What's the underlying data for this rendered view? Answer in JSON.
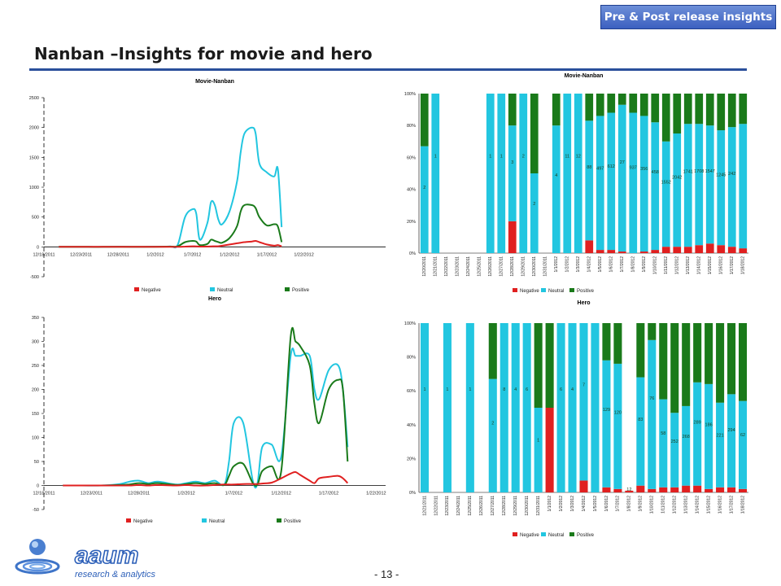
{
  "header": {
    "badge": "Pre & Post release insights",
    "title": "Nanban –Insights for movie and hero"
  },
  "footer": {
    "page_number": "- 13 -",
    "logo_word": "aaum",
    "logo_tag": "research & analytics"
  },
  "colors": {
    "negative": "#e02020",
    "neutral": "#22c6e0",
    "positive": "#1a7a1a"
  },
  "chart_data": [
    {
      "id": "movie-line",
      "type": "line",
      "title": "Movie-Nanban",
      "ylim": [
        -500,
        2500
      ],
      "yticks": [
        -500,
        0,
        500,
        1000,
        1500,
        2000,
        2500
      ],
      "xlim": [
        0,
        46
      ],
      "xticks": [
        {
          "pos": 0,
          "label": "12/18/2011"
        },
        {
          "pos": 5,
          "label": "12/23/2011"
        },
        {
          "pos": 10,
          "label": "12/28/2011"
        },
        {
          "pos": 15,
          "label": "1/2/2012"
        },
        {
          "pos": 20,
          "label": "1/7/2012"
        },
        {
          "pos": 25,
          "label": "1/12/2012"
        },
        {
          "pos": 30,
          "label": "1/17/2012"
        },
        {
          "pos": 35,
          "label": "1/22/2012"
        }
      ],
      "legend": [
        "Negative",
        "Neutral",
        "Positive"
      ],
      "x": [
        2,
        4,
        6,
        8,
        10,
        11,
        13,
        15,
        17,
        18,
        19,
        20,
        20.5,
        21,
        22,
        22.5,
        23,
        23.5,
        24,
        25,
        26,
        26.5,
        27,
        28,
        28.5,
        29,
        30,
        31,
        31.5,
        32
      ],
      "series": [
        {
          "name": "Negative",
          "values": [
            0,
            0,
            0,
            0,
            0,
            0,
            0,
            0,
            0,
            0,
            5,
            10,
            8,
            5,
            6,
            8,
            10,
            12,
            20,
            40,
            60,
            70,
            80,
            90,
            100,
            80,
            40,
            20,
            30,
            10
          ]
        },
        {
          "name": "Neutral",
          "values": [
            0,
            0,
            0,
            0,
            5,
            3,
            2,
            5,
            8,
            30,
            500,
            630,
            560,
            120,
            400,
            750,
            700,
            450,
            380,
            600,
            1100,
            1600,
            1900,
            2000,
            1900,
            1400,
            1250,
            1180,
            1300,
            330
          ]
        },
        {
          "name": "Positive",
          "values": [
            0,
            0,
            0,
            0,
            2,
            1,
            1,
            2,
            4,
            10,
            80,
            100,
            90,
            30,
            50,
            120,
            100,
            80,
            70,
            150,
            350,
            600,
            700,
            700,
            650,
            500,
            360,
            380,
            340,
            80
          ]
        }
      ]
    },
    {
      "id": "movie-bar",
      "type": "bar",
      "title": "Movie-Nanban",
      "ylim": [
        0,
        100
      ],
      "yticks": [
        0,
        20,
        40,
        60,
        80,
        100
      ],
      "legend": [
        "Negative",
        "Neutral",
        "Positive"
      ],
      "categories": [
        "12/20/2011",
        "12/21/2011",
        "12/22/2011",
        "12/23/2011",
        "12/24/2011",
        "12/25/2011",
        "12/26/2011",
        "12/27/2011",
        "12/28/2011",
        "12/29/2011",
        "12/30/2011",
        "12/31/2011",
        "1/1/2012",
        "1/2/2012",
        "1/3/2012",
        "1/4/2012",
        "1/5/2012",
        "1/6/2012",
        "1/7/2012",
        "1/8/2012",
        "1/9/2012",
        "1/10/2012",
        "1/11/2012",
        "1/12/2012",
        "1/13/2012",
        "1/14/2012",
        "1/15/2012",
        "1/16/2012",
        "1/17/2012",
        "1/18/2012"
      ],
      "series": [
        {
          "name": "Negative",
          "values": [
            0,
            0,
            0,
            0,
            0,
            0,
            0,
            0,
            20,
            0,
            0,
            0,
            0,
            0,
            0,
            8,
            2,
            2,
            1,
            0,
            1,
            2,
            4,
            4,
            4,
            5,
            6,
            5,
            4,
            3
          ]
        },
        {
          "name": "Neutral",
          "values": [
            67,
            100,
            0,
            0,
            0,
            0,
            100,
            100,
            60,
            100,
            50,
            0,
            80,
            100,
            100,
            75,
            84,
            86,
            92,
            88,
            85,
            80,
            66,
            71,
            77,
            76,
            74,
            72,
            75,
            78
          ]
        },
        {
          "name": "Positive",
          "values": [
            33,
            0,
            0,
            0,
            0,
            0,
            0,
            0,
            20,
            0,
            50,
            0,
            20,
            0,
            0,
            17,
            14,
            12,
            7,
            12,
            14,
            18,
            30,
            25,
            19,
            19,
            20,
            23,
            21,
            19
          ]
        }
      ],
      "labels": [
        {
          "i": 0,
          "text": "2"
        },
        {
          "i": 1,
          "text": "1"
        },
        {
          "i": 6,
          "text": "1"
        },
        {
          "i": 7,
          "text": "1"
        },
        {
          "i": 8,
          "text": "3"
        },
        {
          "i": 9,
          "text": "2"
        },
        {
          "i": 10,
          "text": "2"
        },
        {
          "i": 12,
          "text": "4"
        },
        {
          "i": 13,
          "text": "11"
        },
        {
          "i": 14,
          "text": "12"
        },
        {
          "i": 15,
          "text": "88"
        },
        {
          "i": 16,
          "text": "497"
        },
        {
          "i": 17,
          "text": "612"
        },
        {
          "i": 18,
          "text": "27"
        },
        {
          "i": 19,
          "text": "937"
        },
        {
          "i": 20,
          "text": "356"
        },
        {
          "i": 21,
          "text": "458"
        },
        {
          "i": 22,
          "text": "1552"
        },
        {
          "i": 23,
          "text": "2042"
        },
        {
          "i": 24,
          "text": "1741"
        },
        {
          "i": 25,
          "text": "1708"
        },
        {
          "i": 26,
          "text": "1547"
        },
        {
          "i": 27,
          "text": "1245"
        },
        {
          "i": 28,
          "text": "242"
        }
      ]
    },
    {
      "id": "hero-line",
      "type": "line",
      "title": "Hero",
      "ylim": [
        -50,
        350
      ],
      "yticks": [
        -50,
        0,
        50,
        100,
        150,
        200,
        250,
        300,
        350
      ],
      "xlim": [
        0,
        36
      ],
      "xticks": [
        {
          "pos": 0,
          "label": "12/18/2011"
        },
        {
          "pos": 5,
          "label": "12/23/2011"
        },
        {
          "pos": 10,
          "label": "12/28/2011"
        },
        {
          "pos": 15,
          "label": "1/2/2012"
        },
        {
          "pos": 20,
          "label": "1/7/2012"
        },
        {
          "pos": 25,
          "label": "1/12/2012"
        },
        {
          "pos": 30,
          "label": "1/17/2012"
        },
        {
          "pos": 35,
          "label": "1/22/2012"
        }
      ],
      "legend": [
        "Negative",
        "Neutral",
        "Positive"
      ],
      "x": [
        2,
        4,
        6,
        8,
        9,
        10,
        11,
        12,
        14,
        15,
        16,
        17,
        18,
        19,
        19.5,
        20,
        21,
        22,
        22.5,
        23,
        24,
        25,
        26,
        26.5,
        27,
        28,
        28.5,
        29,
        30,
        31,
        31.5,
        32
      ],
      "series": [
        {
          "name": "Negative",
          "values": [
            0,
            0,
            0,
            0,
            0,
            1,
            0,
            1,
            0,
            1,
            0,
            0,
            1,
            2,
            2,
            2,
            3,
            3,
            3,
            4,
            6,
            15,
            25,
            28,
            22,
            10,
            5,
            15,
            18,
            20,
            15,
            5
          ]
        },
        {
          "name": "Neutral",
          "values": [
            0,
            0,
            0,
            3,
            8,
            10,
            5,
            8,
            2,
            5,
            8,
            5,
            10,
            2,
            50,
            130,
            130,
            10,
            5,
            80,
            85,
            60,
            270,
            270,
            270,
            270,
            200,
            180,
            240,
            250,
            200,
            80
          ]
        },
        {
          "name": "Positive",
          "values": [
            0,
            0,
            0,
            1,
            2,
            5,
            3,
            5,
            1,
            3,
            5,
            3,
            5,
            1,
            20,
            40,
            45,
            5,
            2,
            30,
            40,
            30,
            310,
            300,
            290,
            250,
            170,
            130,
            200,
            220,
            200,
            50
          ]
        }
      ]
    },
    {
      "id": "hero-bar",
      "type": "bar",
      "title": "Hero",
      "ylim": [
        0,
        100
      ],
      "yticks": [
        0,
        20,
        40,
        60,
        80,
        100
      ],
      "legend": [
        "Negative",
        "Neutral",
        "Positive"
      ],
      "categories": [
        "12/21/2011",
        "12/22/2011",
        "12/23/2011",
        "12/24/2011",
        "12/25/2011",
        "12/26/2011",
        "12/27/2011",
        "12/28/2011",
        "12/29/2011",
        "12/30/2011",
        "12/31/2011",
        "1/1/2012",
        "1/2/2012",
        "1/3/2012",
        "1/4/2012",
        "1/5/2012",
        "1/6/2012",
        "1/7/2012",
        "1/8/2012",
        "1/9/2012",
        "1/10/2012",
        "1/11/2012",
        "1/12/2012",
        "1/13/2012",
        "1/14/2012",
        "1/15/2012",
        "1/16/2012",
        "1/17/2012",
        "1/18/2012"
      ],
      "series": [
        {
          "name": "Negative",
          "values": [
            0,
            0,
            0,
            0,
            0,
            0,
            0,
            0,
            0,
            0,
            0,
            50,
            0,
            0,
            7,
            0,
            3,
            2,
            1,
            4,
            2,
            3,
            3,
            4,
            4,
            2,
            3,
            3,
            2
          ]
        },
        {
          "name": "Neutral",
          "values": [
            100,
            0,
            100,
            0,
            100,
            0,
            67,
            100,
            100,
            100,
            50,
            0,
            100,
            100,
            93,
            100,
            75,
            74,
            0,
            64,
            88,
            52,
            44,
            47,
            61,
            62,
            50,
            55,
            52
          ]
        },
        {
          "name": "Positive",
          "values": [
            0,
            0,
            0,
            0,
            0,
            0,
            33,
            0,
            0,
            0,
            50,
            50,
            0,
            0,
            0,
            0,
            22,
            24,
            0,
            32,
            10,
            45,
            53,
            49,
            35,
            36,
            47,
            42,
            46
          ]
        }
      ],
      "labels": [
        {
          "i": 0,
          "text": "1"
        },
        {
          "i": 2,
          "text": "1"
        },
        {
          "i": 4,
          "text": "1"
        },
        {
          "i": 6,
          "text": "2"
        },
        {
          "i": 7,
          "text": "8"
        },
        {
          "i": 8,
          "text": "4"
        },
        {
          "i": 9,
          "text": "6"
        },
        {
          "i": 10,
          "text": "1"
        },
        {
          "i": 12,
          "text": "6"
        },
        {
          "i": 13,
          "text": "4"
        },
        {
          "i": 14,
          "text": "7"
        },
        {
          "i": 16,
          "text": "129"
        },
        {
          "i": 17,
          "text": "120"
        },
        {
          "i": 18,
          "text": "12"
        },
        {
          "i": 19,
          "text": "83"
        },
        {
          "i": 20,
          "text": "76"
        },
        {
          "i": 21,
          "text": "58"
        },
        {
          "i": 22,
          "text": "252"
        },
        {
          "i": 23,
          "text": "268"
        },
        {
          "i": 24,
          "text": "289"
        },
        {
          "i": 25,
          "text": "186"
        },
        {
          "i": 26,
          "text": "221"
        },
        {
          "i": 27,
          "text": "294"
        },
        {
          "i": 28,
          "text": "62"
        }
      ]
    }
  ]
}
